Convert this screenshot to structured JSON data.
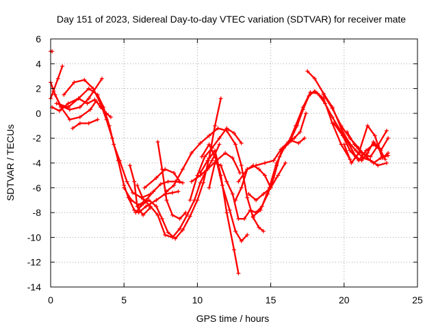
{
  "chart_data": {
    "type": "scatter",
    "title": "Day 151 of 2023, Sidereal Day-to-day VTEC variation (SDTVAR) for receiver mate",
    "xlabel": "GPS time / hours",
    "ylabel": "SDTVAR / TECUs",
    "xlim": [
      0,
      25
    ],
    "ylim": [
      -14,
      6
    ],
    "xticks": [
      "0",
      "5",
      "10",
      "15",
      "20",
      "25"
    ],
    "yticks": [
      "6",
      "4",
      "2",
      "0",
      "-2",
      "-4",
      "-6",
      "-8",
      "-10",
      "-12",
      "-14"
    ],
    "grid": true,
    "series_color": "#ff0000",
    "series": [
      {
        "x": [
          0.0,
          0.5,
          0.8
        ],
        "y": [
          1.2,
          2.8,
          3.8
        ]
      },
      {
        "x": [
          0.0,
          0.3,
          0.7,
          1.3,
          2.0,
          2.6,
          3.5
        ],
        "y": [
          2.5,
          1.5,
          0.6,
          0.3,
          0.5,
          1.2,
          2.8
        ]
      },
      {
        "x": [
          0.1,
          0.6,
          1.2,
          1.9,
          2.5,
          3.0
        ],
        "y": [
          0.5,
          0.2,
          0.8,
          1.2,
          0.8,
          1.1
        ]
      },
      {
        "x": [
          0.2,
          0.7,
          1.3,
          2.0,
          2.7,
          3.1,
          3.4,
          3.8,
          4.1
        ],
        "y": [
          1.8,
          0.5,
          -0.5,
          -0.3,
          0.3,
          1.0,
          0.5,
          0.0,
          -0.3
        ]
      },
      {
        "x": [
          1.5,
          2.0,
          2.6,
          3.2
        ],
        "y": [
          -1.2,
          -0.8,
          -0.8,
          -0.5
        ]
      },
      {
        "x": [
          0.4,
          1.2,
          1.9,
          2.6,
          3.2,
          3.6,
          4.0,
          4.3,
          4.7,
          5.2,
          5.6,
          6.2,
          6.8
        ],
        "y": [
          0.8,
          0.5,
          1.2,
          2.0,
          1.5,
          0.5,
          -1.0,
          -2.5,
          -3.8,
          -5.5,
          -6.4,
          -6.8,
          -6.5
        ]
      },
      {
        "x": [
          0.9,
          1.6,
          2.3,
          2.9,
          3.4,
          3.8,
          4.2,
          4.6,
          5.0,
          5.3,
          5.7,
          6.0,
          6.5,
          7.2,
          7.8,
          8.3,
          8.7
        ],
        "y": [
          1.5,
          2.5,
          2.7,
          2.0,
          0.8,
          -0.5,
          -2.0,
          -3.8,
          -5.8,
          -6.8,
          -7.8,
          -8.0,
          -7.5,
          -7.0,
          -6.5,
          -6.4,
          -6.3
        ]
      },
      {
        "x": [
          5.0,
          5.5,
          6.0,
          6.5,
          7.0,
          7.5,
          8.0,
          8.5,
          9.0
        ],
        "y": [
          -6.0,
          -7.0,
          -7.4,
          -7.0,
          -6.3,
          -5.7,
          -5.5,
          -5.5,
          -5.6
        ]
      },
      {
        "x": [
          5.4,
          5.7,
          5.9,
          6.3,
          6.8
        ],
        "y": [
          -4.2,
          -5.5,
          -7.5,
          -8.2,
          -7.6
        ]
      },
      {
        "x": [
          5.9,
          6.3,
          6.8,
          7.3,
          7.8,
          8.3,
          8.8,
          9.3,
          9.8,
          10.2,
          10.6,
          11.0,
          11.5
        ],
        "y": [
          -5.8,
          -6.9,
          -7.5,
          -8.2,
          -9.8,
          -10.0,
          -9.3,
          -8.2,
          -7.0,
          -5.6,
          -4.6,
          -3.8,
          -2.5
        ]
      },
      {
        "x": [
          5.8,
          6.2,
          6.7,
          7.2,
          7.6,
          8.0,
          8.5,
          9.0,
          9.5,
          10.0,
          10.4,
          10.8,
          11.2,
          11.6
        ],
        "y": [
          -8.0,
          -7.4,
          -7.0,
          -7.5,
          -8.5,
          -9.6,
          -10.1,
          -9.4,
          -8.3,
          -7.0,
          -5.6,
          -3.6,
          -1.0,
          1.2
        ]
      },
      {
        "x": [
          6.4,
          7.2,
          7.8,
          8.4,
          8.8
        ],
        "y": [
          -6.0,
          -5.2,
          -4.5,
          -4.8,
          -5.5
        ]
      },
      {
        "x": [
          7.3,
          7.6,
          7.9,
          8.3,
          8.8,
          9.2
        ],
        "y": [
          -2.3,
          -4.5,
          -7.0,
          -8.2,
          -8.5,
          -8.0
        ]
      },
      {
        "x": [
          7.9,
          8.4,
          9.0,
          9.6,
          10.2,
          10.8,
          11.4,
          12.0,
          12.6,
          13.0,
          13.4,
          13.8,
          14.2,
          14.5
        ],
        "y": [
          -6.3,
          -5.8,
          -4.5,
          -3.2,
          -2.4,
          -1.8,
          -1.2,
          -1.4,
          -2.5,
          -4.2,
          -6.8,
          -8.4,
          -9.2,
          -9.5
        ]
      },
      {
        "x": [
          9.5,
          10.0,
          10.5,
          11.0,
          11.5,
          12.0,
          12.5,
          13.0
        ],
        "y": [
          -7.0,
          -5.0,
          -3.5,
          -2.8,
          -2.0,
          -1.2,
          -1.6,
          -2.4
        ]
      },
      {
        "x": [
          9.6,
          10.2,
          10.7,
          11.3,
          11.9,
          12.4,
          12.9
        ],
        "y": [
          -5.5,
          -5.0,
          -4.5,
          -3.8,
          -3.2,
          -3.6,
          -4.8
        ]
      },
      {
        "x": [
          10.2,
          10.7,
          11.2,
          11.6,
          12.0,
          12.5,
          12.8
        ],
        "y": [
          -4.8,
          -3.8,
          -3.0,
          -5.0,
          -8.0,
          -11.0,
          -12.9
        ]
      },
      {
        "x": [
          10.3,
          10.8,
          11.3,
          11.7,
          12.2,
          12.6,
          13.0,
          13.4
        ],
        "y": [
          -3.5,
          -2.5,
          -3.8,
          -5.8,
          -7.8,
          -9.5,
          -10.3,
          -9.8
        ]
      },
      {
        "x": [
          10.8,
          11.2,
          11.6,
          12.0,
          12.4,
          12.8,
          13.2,
          13.6,
          14.0,
          14.4,
          14.8,
          15.2,
          15.6,
          16.0,
          16.4,
          16.8,
          17.2,
          17.6,
          18.0,
          18.6,
          19.2,
          19.8,
          20.4
        ],
        "y": [
          -6.0,
          -4.0,
          -4.2,
          -5.5,
          -6.5,
          -8.5,
          -8.5,
          -7.8,
          -8.0,
          -7.5,
          -6.5,
          -5.2,
          -3.5,
          -2.6,
          -2.0,
          -1.0,
          0.3,
          1.4,
          1.8,
          1.2,
          -0.8,
          -2.5,
          -3.7
        ]
      },
      {
        "x": [
          12.6,
          13.0,
          13.4,
          13.8,
          14.2,
          14.6,
          15.0,
          15.4,
          15.8,
          16.2,
          16.6,
          17.0,
          17.4
        ],
        "y": [
          -7.0,
          -6.0,
          -4.5,
          -4.2,
          -4.5,
          -5.0,
          -6.0,
          -4.2,
          -2.8,
          -2.3,
          -2.0,
          -1.5,
          0.0
        ]
      },
      {
        "x": [
          12.8,
          13.4,
          14.0,
          14.6,
          15.2,
          15.7,
          16.2,
          16.7,
          17.2,
          17.7,
          18.2,
          18.7,
          19.2,
          19.8,
          20.3,
          20.8,
          21.2,
          21.6,
          22.0,
          22.4,
          22.8
        ],
        "y": [
          -5.5,
          -4.5,
          -4.2,
          -4.0,
          -3.8,
          -2.9,
          -2.4,
          -1.0,
          0.5,
          1.7,
          1.6,
          0.8,
          -0.3,
          -1.5,
          -2.4,
          -3.5,
          -3.8,
          -3.2,
          -2.3,
          -2.8,
          -3.7
        ]
      },
      {
        "x": [
          13.5,
          14.0,
          14.5,
          15.0,
          15.5,
          16.0
        ],
        "y": [
          -6.5,
          -7.0,
          -6.5,
          -6.0,
          -5.0,
          -4.0
        ]
      },
      {
        "x": [
          13.8,
          14.3,
          14.9,
          15.4,
          15.9,
          16.4,
          16.9,
          17.3
        ],
        "y": [
          -8.3,
          -7.8,
          -6.0,
          -4.0,
          -2.8,
          -2.2,
          -2.4,
          -2.0
        ]
      },
      {
        "x": [
          17.5,
          18.0,
          18.6,
          19.2,
          19.8,
          20.3,
          20.8,
          21.3,
          21.8,
          22.3,
          22.9
        ],
        "y": [
          3.4,
          2.8,
          1.6,
          0.5,
          -1.2,
          -2.3,
          -3.0,
          -3.6,
          -3.8,
          -4.2,
          -4.0
        ]
      },
      {
        "x": [
          18.6,
          19.2,
          19.8,
          20.4,
          21.0,
          21.5,
          22.0,
          22.5,
          23.0
        ],
        "y": [
          1.5,
          0.4,
          -1.0,
          -2.0,
          -2.8,
          -3.5,
          -4.0,
          -3.6,
          -3.4
        ]
      },
      {
        "x": [
          19.3,
          19.9,
          20.4,
          21.0,
          21.5,
          22.0,
          22.5,
          23.0
        ],
        "y": [
          -0.8,
          -1.8,
          -3.0,
          -3.8,
          -3.0,
          -2.5,
          -3.0,
          -2.0
        ]
      },
      {
        "x": [
          20.2,
          20.7,
          21.2,
          21.8,
          22.3,
          22.9
        ],
        "y": [
          -1.5,
          -2.5,
          -3.2,
          -3.5,
          -2.6,
          -1.4
        ]
      },
      {
        "x": [
          20.0,
          20.5,
          21.0,
          21.6,
          22.1,
          22.6,
          23.0
        ],
        "y": [
          -2.5,
          -4.0,
          -3.2,
          -1.0,
          -1.8,
          -3.6,
          -3.2
        ]
      },
      {
        "x": [
          0.0,
          0.1
        ],
        "y": [
          5.0,
          5.0
        ]
      }
    ]
  }
}
